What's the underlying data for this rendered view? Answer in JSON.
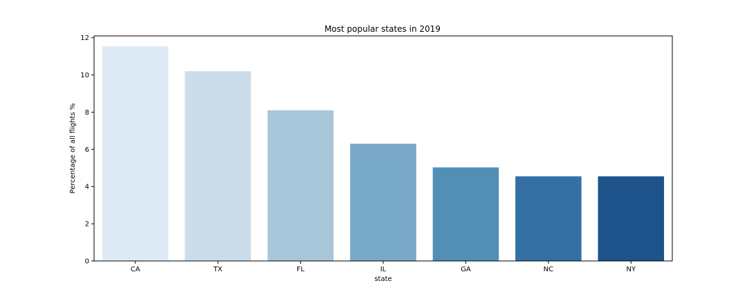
{
  "chart_data": {
    "type": "bar",
    "title": "Most popular states in 2019",
    "xlabel": "state",
    "ylabel": "Percentage of all flights %",
    "categories": [
      "CA",
      "TX",
      "FL",
      "IL",
      "GA",
      "NC",
      "NY"
    ],
    "values": [
      11.55,
      10.2,
      8.1,
      6.3,
      5.03,
      4.55,
      4.55
    ],
    "colors": [
      "#deebf7",
      "#cbdcea",
      "#a7c6d9",
      "#79a9c9",
      "#528fb7",
      "#3470a4",
      "#1d528a"
    ],
    "ylim": [
      0,
      12.1
    ],
    "yticks": [
      0,
      2,
      4,
      6,
      8,
      10,
      12
    ],
    "grid": false,
    "legend": "none"
  }
}
